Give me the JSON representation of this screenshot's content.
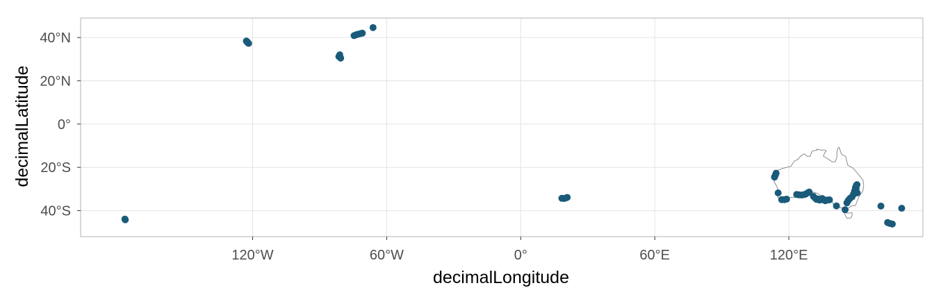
{
  "chart_data": {
    "type": "scatter",
    "title": "",
    "xlabel": "decimalLongitude",
    "ylabel": "decimalLatitude",
    "xlim": [
      -197,
      180
    ],
    "ylim": [
      -52,
      49
    ],
    "grid": true,
    "legend": "none",
    "x_ticks": [
      {
        "value": -120,
        "label": "120°W"
      },
      {
        "value": -60,
        "label": "60°W"
      },
      {
        "value": 0,
        "label": "0°"
      },
      {
        "value": 60,
        "label": "60°E"
      },
      {
        "value": 120,
        "label": "120°E"
      }
    ],
    "y_ticks": [
      {
        "value": 40,
        "label": "40°N"
      },
      {
        "value": 20,
        "label": "20°N"
      },
      {
        "value": 0,
        "label": "0°"
      },
      {
        "value": -20,
        "label": "20°S"
      },
      {
        "value": -40,
        "label": "40°S"
      }
    ],
    "colors": {
      "points": "#1a5a7a",
      "outline": "#8c8c8c",
      "grid": "#e3e3e3",
      "border": "#b3b3b3"
    },
    "outline_name": "Australia",
    "outline": [
      [
        113.7,
        -22.5
      ],
      [
        114.2,
        -21.8
      ],
      [
        116.8,
        -20.6
      ],
      [
        121.0,
        -19.5
      ],
      [
        122.3,
        -17.2
      ],
      [
        124.0,
        -16.3
      ],
      [
        125.6,
        -14.5
      ],
      [
        127.0,
        -13.8
      ],
      [
        128.2,
        -14.9
      ],
      [
        129.6,
        -14.9
      ],
      [
        130.1,
        -13.2
      ],
      [
        130.6,
        -12.4
      ],
      [
        132.6,
        -12.1
      ],
      [
        132.5,
        -11.6
      ],
      [
        134.4,
        -12.0
      ],
      [
        135.9,
        -12.0
      ],
      [
        136.8,
        -12.3
      ],
      [
        136.0,
        -13.4
      ],
      [
        135.5,
        -14.9
      ],
      [
        137.7,
        -16.2
      ],
      [
        139.3,
        -17.4
      ],
      [
        140.8,
        -17.4
      ],
      [
        141.6,
        -15.0
      ],
      [
        141.5,
        -13.1
      ],
      [
        142.0,
        -11.1
      ],
      [
        142.5,
        -10.7
      ],
      [
        143.6,
        -14.0
      ],
      [
        145.4,
        -14.9
      ],
      [
        146.3,
        -18.9
      ],
      [
        148.8,
        -20.4
      ],
      [
        150.6,
        -22.6
      ],
      [
        153.2,
        -25.9
      ],
      [
        153.5,
        -28.5
      ],
      [
        153.1,
        -31.1
      ],
      [
        151.7,
        -33.0
      ],
      [
        150.7,
        -35.2
      ],
      [
        149.9,
        -37.5
      ],
      [
        147.9,
        -37.9
      ],
      [
        146.3,
        -39.1
      ],
      [
        145.0,
        -38.4
      ],
      [
        143.7,
        -38.8
      ],
      [
        141.6,
        -38.3
      ],
      [
        140.0,
        -37.4
      ],
      [
        139.6,
        -36.1
      ],
      [
        138.1,
        -35.6
      ],
      [
        138.4,
        -34.4
      ],
      [
        137.4,
        -34.8
      ],
      [
        137.7,
        -33.9
      ],
      [
        136.0,
        -34.9
      ],
      [
        134.8,
        -33.6
      ],
      [
        133.1,
        -32.1
      ],
      [
        131.3,
        -31.5
      ],
      [
        129.0,
        -31.7
      ],
      [
        126.1,
        -32.2
      ],
      [
        124.2,
        -33.0
      ],
      [
        123.7,
        -33.9
      ],
      [
        121.3,
        -33.8
      ],
      [
        119.9,
        -34.0
      ],
      [
        117.9,
        -35.1
      ],
      [
        115.6,
        -34.4
      ],
      [
        115.0,
        -33.6
      ],
      [
        115.7,
        -32.5
      ],
      [
        115.2,
        -30.5
      ],
      [
        114.6,
        -28.8
      ],
      [
        113.4,
        -26.5
      ],
      [
        113.7,
        -25.3
      ],
      [
        113.4,
        -24.4
      ],
      [
        113.7,
        -22.5
      ]
    ],
    "outline_tasmania": [
      [
        144.7,
        -40.7
      ],
      [
        146.4,
        -41.2
      ],
      [
        148.3,
        -40.9
      ],
      [
        148.3,
        -42.1
      ],
      [
        147.9,
        -43.2
      ],
      [
        146.9,
        -43.6
      ],
      [
        146.0,
        -43.5
      ],
      [
        145.3,
        -42.2
      ],
      [
        144.7,
        -40.7
      ]
    ],
    "points": [
      {
        "x": -177.2,
        "y": -43.9
      },
      {
        "x": -177.0,
        "y": -44.2
      },
      {
        "x": -122.8,
        "y": 38.4
      },
      {
        "x": -122.4,
        "y": 38.0
      },
      {
        "x": -122.2,
        "y": 37.6
      },
      {
        "x": -121.8,
        "y": 37.3
      },
      {
        "x": -81.4,
        "y": 31.2
      },
      {
        "x": -81.0,
        "y": 32.0
      },
      {
        "x": -80.6,
        "y": 30.5
      },
      {
        "x": -74.6,
        "y": 40.9
      },
      {
        "x": -73.8,
        "y": 41.2
      },
      {
        "x": -72.9,
        "y": 41.5
      },
      {
        "x": -71.8,
        "y": 41.8
      },
      {
        "x": -70.9,
        "y": 42.0
      },
      {
        "x": -66.1,
        "y": 44.6
      },
      {
        "x": 18.4,
        "y": -34.3
      },
      {
        "x": 19.3,
        "y": -34.4
      },
      {
        "x": 20.1,
        "y": -34.2
      },
      {
        "x": 20.8,
        "y": -33.9
      },
      {
        "x": 113.6,
        "y": -24.5
      },
      {
        "x": 114.0,
        "y": -23.5
      },
      {
        "x": 114.3,
        "y": -22.7
      },
      {
        "x": 115.2,
        "y": -31.8
      },
      {
        "x": 116.8,
        "y": -34.9
      },
      {
        "x": 118.0,
        "y": -34.9
      },
      {
        "x": 119.0,
        "y": -34.7
      },
      {
        "x": 123.5,
        "y": -32.5
      },
      {
        "x": 124.5,
        "y": -32.7
      },
      {
        "x": 125.7,
        "y": -32.8
      },
      {
        "x": 126.7,
        "y": -32.6
      },
      {
        "x": 127.5,
        "y": -32.4
      },
      {
        "x": 128.4,
        "y": -31.8
      },
      {
        "x": 129.1,
        "y": -31.4
      },
      {
        "x": 131.0,
        "y": -33.4
      },
      {
        "x": 131.8,
        "y": -34.2
      },
      {
        "x": 132.4,
        "y": -34.8
      },
      {
        "x": 133.1,
        "y": -34.6
      },
      {
        "x": 133.7,
        "y": -35.1
      },
      {
        "x": 134.3,
        "y": -35.0
      },
      {
        "x": 135.0,
        "y": -34.4
      },
      {
        "x": 135.6,
        "y": -35.0
      },
      {
        "x": 136.3,
        "y": -35.4
      },
      {
        "x": 137.2,
        "y": -35.1
      },
      {
        "x": 138.2,
        "y": -35.0
      },
      {
        "x": 141.3,
        "y": -37.8
      },
      {
        "x": 145.2,
        "y": -39.6
      },
      {
        "x": 146.0,
        "y": -36.4
      },
      {
        "x": 146.6,
        "y": -35.3
      },
      {
        "x": 147.4,
        "y": -34.3
      },
      {
        "x": 148.3,
        "y": -33.6
      },
      {
        "x": 148.9,
        "y": -32.5
      },
      {
        "x": 149.4,
        "y": -31.0
      },
      {
        "x": 149.8,
        "y": -29.4
      },
      {
        "x": 150.2,
        "y": -28.3
      },
      {
        "x": 150.5,
        "y": -28.0
      },
      {
        "x": 150.1,
        "y": -29.8
      },
      {
        "x": 150.6,
        "y": -31.8
      },
      {
        "x": 161.2,
        "y": -37.9
      },
      {
        "x": 164.2,
        "y": -45.5
      },
      {
        "x": 165.2,
        "y": -45.9
      },
      {
        "x": 166.3,
        "y": -46.2
      },
      {
        "x": 170.5,
        "y": -38.9
      }
    ]
  }
}
